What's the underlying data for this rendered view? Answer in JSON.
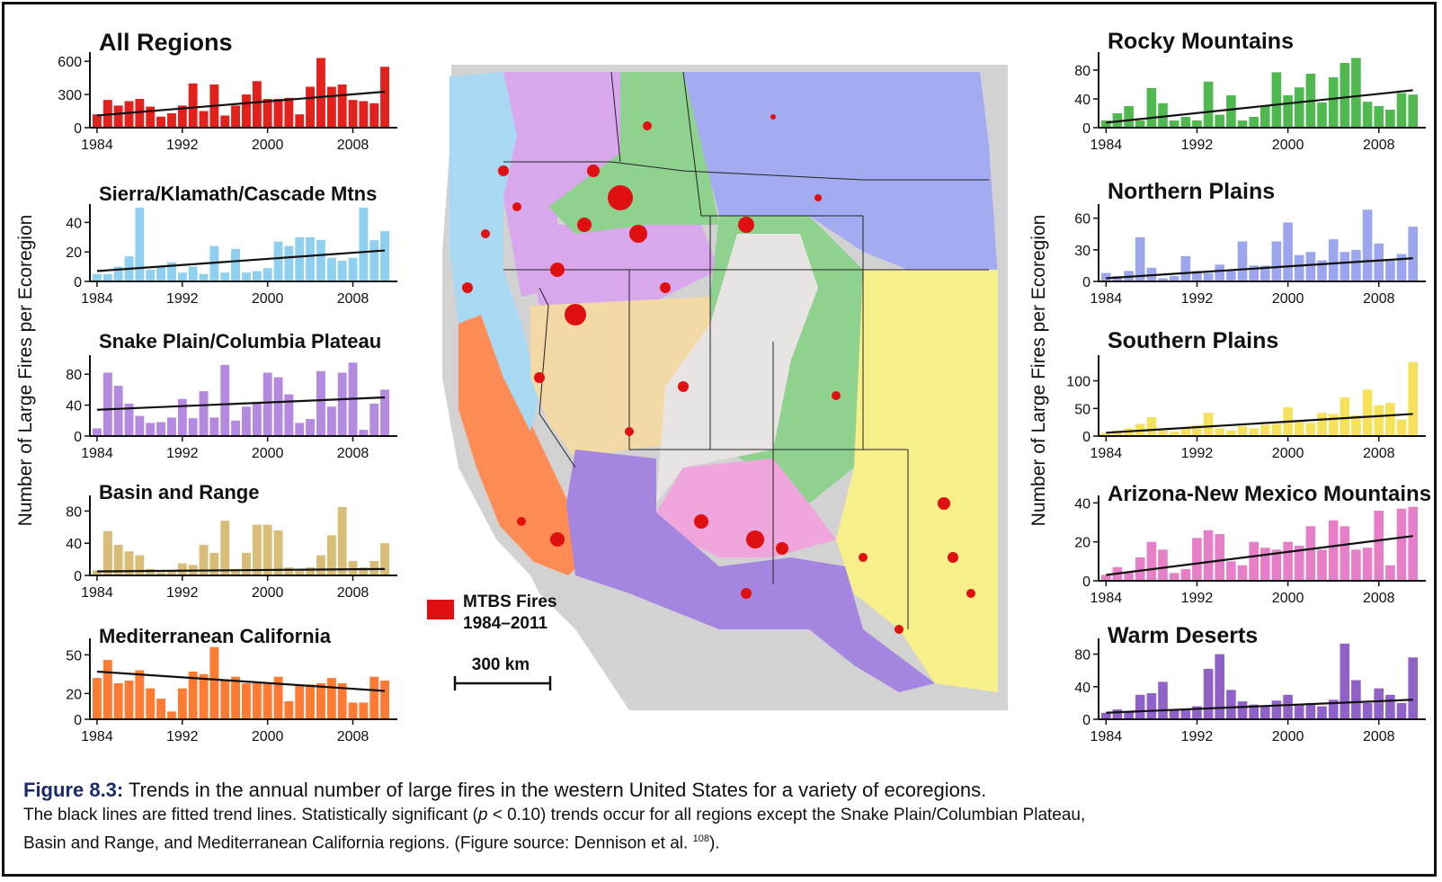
{
  "figure": {
    "ylabel": "Number of Large Fires per Ecoregion",
    "caption_label": "Figure 8.3:",
    "caption_title": "Trends in the annual number of large fires in the western United States for a variety of ecoregions.",
    "caption_line2_a": "The black lines are fitted trend lines. Statistically significant (",
    "caption_p": "p",
    "caption_line2_b": " < 0.10) trends occur for all regions except the Snake Plain/Columbian Plateau,",
    "caption_line3": "Basin and Range, and Mediterranean California regions.  (Figure source: Dennison et al. ",
    "caption_ref": "108",
    "caption_end": ")."
  },
  "map": {
    "legend_label_1": "MTBS Fires",
    "legend_label_2": "1984–2011",
    "legend_color": "#e01010",
    "scale_label": "300 km"
  },
  "chart_data": [
    {
      "type": "bar",
      "title": "All Regions",
      "color": "#e2201c",
      "x": [
        1984,
        1985,
        1986,
        1987,
        1988,
        1989,
        1990,
        1991,
        1992,
        1993,
        1994,
        1995,
        1996,
        1997,
        1998,
        1999,
        2000,
        2001,
        2002,
        2003,
        2004,
        2005,
        2006,
        2007,
        2008,
        2009,
        2010,
        2011
      ],
      "values": [
        120,
        250,
        200,
        240,
        260,
        190,
        100,
        130,
        200,
        400,
        150,
        390,
        110,
        200,
        300,
        420,
        260,
        260,
        270,
        120,
        370,
        630,
        370,
        390,
        250,
        240,
        220,
        550
      ],
      "trend": [
        110,
        325
      ],
      "ylim": [
        0,
        650
      ],
      "yticks": [
        0,
        300,
        600
      ],
      "xticks": [
        1984,
        1992,
        2000,
        2008
      ]
    },
    {
      "type": "bar",
      "title": "Sierra/Klamath/Cascade Mtns",
      "color": "#8fd0f0",
      "x": [
        1984,
        1985,
        1986,
        1987,
        1988,
        1989,
        1990,
        1991,
        1992,
        1993,
        1994,
        1995,
        1996,
        1997,
        1998,
        1999,
        2000,
        2001,
        2002,
        2003,
        2004,
        2005,
        2006,
        2007,
        2008,
        2009,
        2010,
        2011
      ],
      "values": [
        5,
        5,
        10,
        17,
        50,
        8,
        10,
        13,
        6,
        10,
        5,
        24,
        6,
        22,
        6,
        7,
        9,
        27,
        24,
        30,
        30,
        28,
        16,
        14,
        16,
        50,
        28,
        34
      ],
      "trend": [
        7,
        21
      ],
      "ylim": [
        0,
        50
      ],
      "yticks": [
        0,
        20,
        40
      ],
      "xticks": [
        1984,
        1992,
        2000,
        2008
      ]
    },
    {
      "type": "bar",
      "title": "Snake Plain/Columbia Plateau",
      "color": "#b48ae0",
      "x": [
        1984,
        1985,
        1986,
        1987,
        1988,
        1989,
        1990,
        1991,
        1992,
        1993,
        1994,
        1995,
        1996,
        1997,
        1998,
        1999,
        2000,
        2001,
        2002,
        2003,
        2004,
        2005,
        2006,
        2007,
        2008,
        2009,
        2010,
        2011
      ],
      "values": [
        10,
        82,
        65,
        42,
        26,
        17,
        18,
        24,
        48,
        23,
        58,
        24,
        92,
        20,
        38,
        44,
        82,
        76,
        54,
        17,
        22,
        84,
        38,
        82,
        95,
        8,
        42,
        60
      ],
      "trend": [
        34,
        50
      ],
      "ylim": [
        0,
        100
      ],
      "yticks": [
        0,
        40,
        80
      ],
      "xticks": [
        1984,
        1992,
        2000,
        2008
      ]
    },
    {
      "type": "bar",
      "title": "Basin and Range",
      "color": "#d8bd78",
      "x": [
        1984,
        1985,
        1986,
        1987,
        1988,
        1989,
        1990,
        1991,
        1992,
        1993,
        1994,
        1995,
        1996,
        1997,
        1998,
        1999,
        2000,
        2001,
        2002,
        2003,
        2004,
        2005,
        2006,
        2007,
        2008,
        2009,
        2010,
        2011
      ],
      "values": [
        6,
        55,
        38,
        30,
        25,
        8,
        4,
        5,
        15,
        13,
        38,
        28,
        68,
        8,
        28,
        63,
        63,
        56,
        10,
        6,
        10,
        25,
        50,
        85,
        18,
        10,
        18,
        40
      ],
      "trend": [
        5,
        8
      ],
      "ylim": [
        0,
        95
      ],
      "yticks": [
        0,
        40,
        80
      ],
      "xticks": [
        1984,
        1992,
        2000,
        2008
      ]
    },
    {
      "type": "bar",
      "title": "Mediterranean California",
      "color": "#ff7a33",
      "x": [
        1984,
        1985,
        1986,
        1987,
        1988,
        1989,
        1990,
        1991,
        1992,
        1993,
        1994,
        1995,
        1996,
        1997,
        1998,
        1999,
        2000,
        2001,
        2002,
        2003,
        2004,
        2005,
        2006,
        2007,
        2008,
        2009,
        2010,
        2011
      ],
      "values": [
        32,
        46,
        28,
        30,
        38,
        24,
        16,
        6,
        24,
        37,
        35,
        56,
        30,
        33,
        28,
        28,
        28,
        33,
        14,
        27,
        27,
        28,
        32,
        28,
        13,
        13,
        33,
        30
      ],
      "trend": [
        37,
        22
      ],
      "ylim": [
        0,
        60
      ],
      "yticks": [
        0,
        20,
        50
      ],
      "xticks": [
        1984,
        1992,
        2000,
        2008
      ]
    },
    {
      "type": "bar",
      "title": "Rocky Mountains",
      "color": "#4fb84f",
      "x": [
        1984,
        1985,
        1986,
        1987,
        1988,
        1989,
        1990,
        1991,
        1992,
        1993,
        1994,
        1995,
        1996,
        1997,
        1998,
        1999,
        2000,
        2001,
        2002,
        2003,
        2004,
        2005,
        2006,
        2007,
        2008,
        2009,
        2010,
        2011
      ],
      "values": [
        10,
        20,
        30,
        10,
        55,
        34,
        10,
        15,
        10,
        64,
        18,
        45,
        10,
        15,
        30,
        77,
        45,
        56,
        75,
        35,
        70,
        90,
        97,
        36,
        30,
        25,
        48,
        46
      ],
      "trend": [
        7,
        52
      ],
      "ylim": [
        0,
        100
      ],
      "yticks": [
        0,
        40,
        80
      ],
      "xticks": [
        1984,
        1992,
        2000,
        2008
      ]
    },
    {
      "type": "bar",
      "title": "Northern Plains",
      "color": "#9ba6ee",
      "x": [
        1984,
        1985,
        1986,
        1987,
        1988,
        1989,
        1990,
        1991,
        1992,
        1993,
        1994,
        1995,
        1996,
        1997,
        1998,
        1999,
        2000,
        2001,
        2002,
        2003,
        2004,
        2005,
        2006,
        2007,
        2008,
        2009,
        2010,
        2011
      ],
      "values": [
        8,
        5,
        10,
        42,
        13,
        3,
        5,
        24,
        10,
        8,
        16,
        10,
        38,
        15,
        15,
        38,
        56,
        25,
        28,
        20,
        40,
        28,
        30,
        68,
        36,
        20,
        26,
        52
      ],
      "trend": [
        3,
        22
      ],
      "ylim": [
        0,
        70
      ],
      "yticks": [
        0,
        30,
        60
      ],
      "xticks": [
        1984,
        1992,
        2000,
        2008
      ]
    },
    {
      "type": "bar",
      "title": "Southern Plains",
      "color": "#f5e15a",
      "x": [
        1984,
        1985,
        1986,
        1987,
        1988,
        1989,
        1990,
        1991,
        1992,
        1993,
        1994,
        1995,
        1996,
        1997,
        1998,
        1999,
        2000,
        2001,
        2002,
        2003,
        2004,
        2005,
        2006,
        2007,
        2008,
        2009,
        2010,
        2011
      ],
      "values": [
        6,
        10,
        14,
        22,
        34,
        10,
        8,
        16,
        20,
        42,
        14,
        10,
        18,
        14,
        20,
        22,
        52,
        28,
        24,
        42,
        40,
        70,
        38,
        84,
        56,
        60,
        30,
        134
      ],
      "trend": [
        6,
        40
      ],
      "ylim": [
        0,
        140
      ],
      "yticks": [
        0,
        50,
        100
      ],
      "xticks": [
        1984,
        1992,
        2000,
        2008
      ]
    },
    {
      "type": "bar",
      "title": "Arizona-New Mexico Mountains",
      "color": "#e67fc8",
      "x": [
        1984,
        1985,
        1986,
        1987,
        1988,
        1989,
        1990,
        1991,
        1992,
        1993,
        1994,
        1995,
        1996,
        1997,
        1998,
        1999,
        2000,
        2001,
        2002,
        2003,
        2004,
        2005,
        2006,
        2007,
        2008,
        2009,
        2010,
        2011
      ],
      "values": [
        3,
        7,
        4,
        12,
        20,
        16,
        4,
        6,
        22,
        26,
        24,
        10,
        8,
        20,
        17,
        16,
        20,
        18,
        28,
        16,
        31,
        28,
        16,
        17,
        36,
        8,
        37,
        38
      ],
      "trend": [
        3,
        23
      ],
      "ylim": [
        0,
        42
      ],
      "yticks": [
        0,
        20,
        40
      ],
      "xticks": [
        1984,
        1992,
        2000,
        2008
      ]
    },
    {
      "type": "bar",
      "title": "Warm Deserts",
      "color": "#9062c9",
      "x": [
        1984,
        1985,
        1986,
        1987,
        1988,
        1989,
        1990,
        1991,
        1992,
        1993,
        1994,
        1995,
        1996,
        1997,
        1998,
        1999,
        2000,
        2001,
        2002,
        2003,
        2004,
        2005,
        2006,
        2007,
        2008,
        2009,
        2010,
        2011
      ],
      "values": [
        8,
        12,
        10,
        30,
        32,
        46,
        12,
        12,
        16,
        62,
        80,
        36,
        22,
        18,
        17,
        23,
        30,
        18,
        20,
        16,
        24,
        93,
        48,
        20,
        38,
        30,
        20,
        76
      ],
      "trend": [
        8,
        24
      ],
      "ylim": [
        0,
        95
      ],
      "yticks": [
        0,
        40,
        80
      ],
      "xticks": [
        1984,
        1992,
        2000,
        2008
      ]
    }
  ]
}
